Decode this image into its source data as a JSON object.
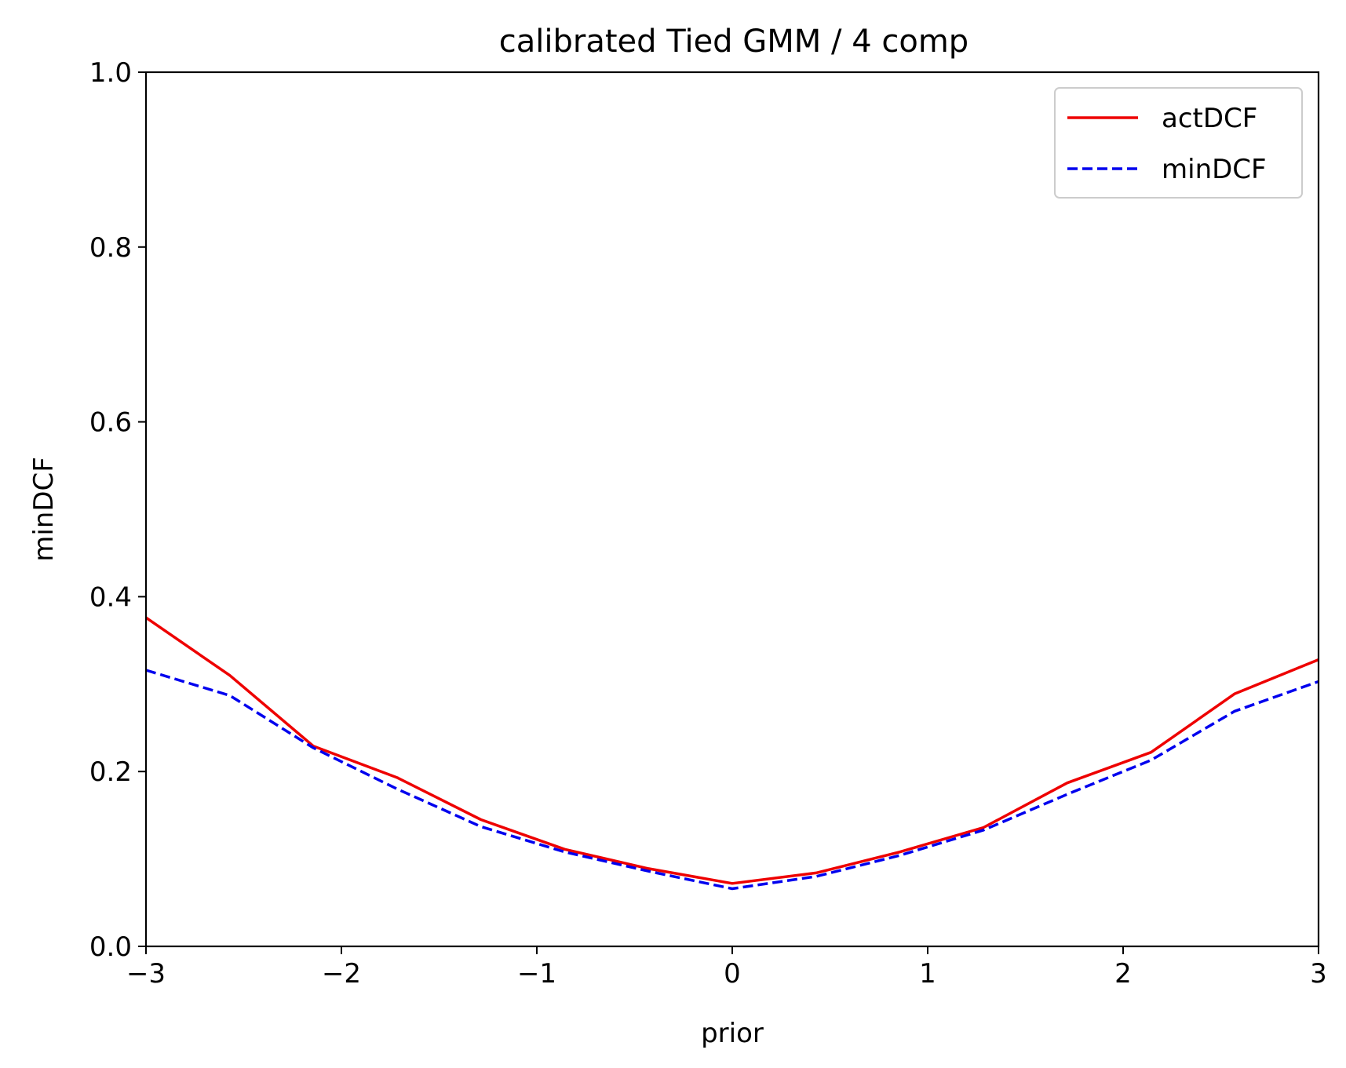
{
  "chart_data": {
    "type": "line",
    "title": "calibrated  Tied GMM / 4 comp",
    "xlabel": "prior",
    "ylabel": "minDCF",
    "xlim": [
      -3,
      3
    ],
    "ylim": [
      0,
      1
    ],
    "xticks": [
      -3,
      -2,
      -1,
      0,
      1,
      2,
      3
    ],
    "xtick_labels": [
      "−3",
      "−2",
      "−1",
      "0",
      "1",
      "2",
      "3"
    ],
    "yticks": [
      0,
      0.2,
      0.4,
      0.6,
      0.8,
      1.0
    ],
    "ytick_labels": [
      "0.0",
      "0.2",
      "0.4",
      "0.6",
      "0.8",
      "1.0"
    ],
    "grid": false,
    "legend_position": "top-right",
    "x": [
      -3.0,
      -2.571,
      -2.143,
      -1.714,
      -1.286,
      -0.857,
      -0.429,
      0.0,
      0.429,
      0.857,
      1.286,
      1.714,
      2.143,
      2.571,
      3.0
    ],
    "series": [
      {
        "name": "actDCF",
        "color": "#ee0000",
        "style": "solid",
        "values": [
          0.376,
          0.31,
          0.229,
          0.193,
          0.145,
          0.111,
          0.089,
          0.072,
          0.084,
          0.108,
          0.136,
          0.187,
          0.222,
          0.289,
          0.328
        ]
      },
      {
        "name": "minDCF",
        "color": "#0000ee",
        "style": "dashed",
        "values": [
          0.316,
          0.287,
          0.227,
          0.18,
          0.137,
          0.108,
          0.086,
          0.066,
          0.08,
          0.104,
          0.133,
          0.174,
          0.213,
          0.269,
          0.303
        ]
      }
    ]
  }
}
